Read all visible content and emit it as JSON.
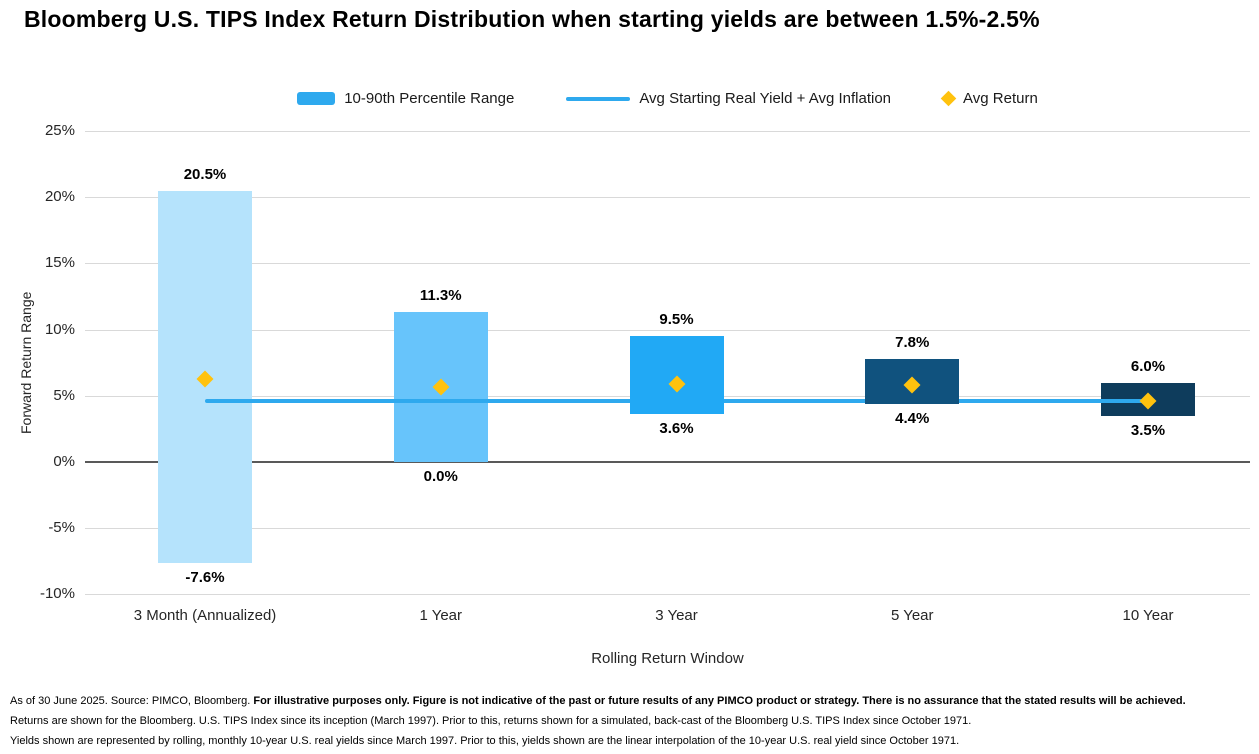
{
  "title": "Bloomberg U.S. TIPS Index Return Distribution when starting yields are between 1.5%-2.5%",
  "legend": {
    "items": [
      {
        "label": "10-90th Percentile Range",
        "swatch": "bar",
        "color": "#2EA9EE"
      },
      {
        "label": "Avg Starting Real Yield + Avg Inflation",
        "swatch": "line",
        "color": "#2EA9EE"
      },
      {
        "label": "Avg Return",
        "swatch": "diamond",
        "color": "#FFC20E"
      }
    ]
  },
  "chart_data": {
    "type": "bar",
    "subtype": "floating-range-bars-with-line-and-points",
    "title": "Bloomberg U.S. TIPS Index Return Distribution when starting yields are between 1.5%-2.5%",
    "categories": [
      "3 Month (Annualized)",
      "1 Year",
      "3 Year",
      "5 Year",
      "10 Year"
    ],
    "range_series": {
      "name": "10-90th Percentile Range",
      "low": [
        -7.6,
        0.0,
        3.6,
        4.4,
        3.5
      ],
      "high": [
        20.5,
        11.3,
        9.5,
        7.8,
        6.0
      ],
      "labels_high": [
        "20.5%",
        "11.3%",
        "9.5%",
        "7.8%",
        "6.0%"
      ],
      "labels_low": [
        "-7.6%",
        "0.0%",
        "3.6%",
        "4.4%",
        "3.5%"
      ],
      "bar_colors": [
        "#B5E3FC",
        "#67C4FB",
        "#21A9F5",
        "#10527E",
        "#0E3C5C"
      ]
    },
    "line_series": {
      "name": "Avg Starting Real Yield + Avg Inflation",
      "value": 4.6,
      "color": "#2EA9EE"
    },
    "point_series": {
      "name": "Avg Return",
      "values": [
        6.3,
        5.7,
        5.9,
        5.8,
        4.6
      ],
      "color": "#FFC20E"
    },
    "xlabel": "Rolling Return Window",
    "ylabel": "Forward Return Range",
    "ylim": [
      -10,
      25
    ],
    "ytick_step": 5,
    "ytick_values": [
      25,
      20,
      15,
      10,
      5,
      0,
      -5,
      -10
    ],
    "ytick_labels": [
      "25%",
      "20%",
      "15%",
      "10%",
      "5%",
      "0%",
      "-5%",
      "-10%"
    ],
    "grid": true,
    "legend_position": "top"
  },
  "footnotes": {
    "line1_normal": "As of 30 June 2025. Source: PIMCO, Bloomberg. ",
    "line1_bold": "For illustrative purposes only. Figure is not indicative of the past or future results of any PIMCO product or strategy. There is no assurance that the stated results will be achieved.",
    "line2": "Returns are shown for the Bloomberg. U.S. TIPS Index since its inception (March 1997). Prior to this, returns shown for a simulated, back-cast of the Bloomberg U.S. TIPS Index since October 1971.",
    "line3": "Yields shown are represented by rolling, monthly 10-year U.S. real yields since March 1997. Prior to this, yields shown are the linear interpolation of the 10-year U.S. real yield since October 1971."
  }
}
